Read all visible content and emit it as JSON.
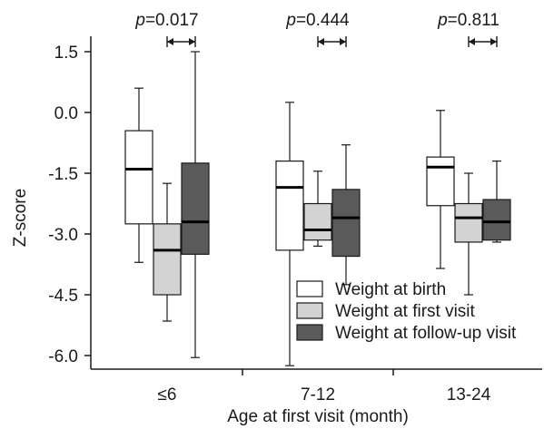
{
  "chart_data": {
    "type": "box",
    "xlabel": "Age at first visit (month)",
    "ylabel": "Z-score",
    "ylim": [
      -6.3,
      1.6
    ],
    "yticks": [
      {
        "value": 1.5,
        "label": "1.5"
      },
      {
        "value": 0.0,
        "label": "0.0"
      },
      {
        "value": -1.5,
        "label": "-1.5"
      },
      {
        "value": -3.0,
        "label": "-3.0"
      },
      {
        "value": -4.5,
        "label": "-4.5"
      },
      {
        "value": -6.0,
        "label": "-6.0"
      }
    ],
    "categories": [
      "≤6",
      "7-12",
      "13-24"
    ],
    "series": [
      {
        "name": "Weight at birth",
        "color": "#ffffff",
        "boxes": [
          {
            "min": -3.7,
            "q1": -2.75,
            "median": -1.4,
            "q3": -0.45,
            "max": 0.6
          },
          {
            "min": -6.25,
            "q1": -3.4,
            "median": -1.85,
            "q3": -1.2,
            "max": 0.25
          },
          {
            "min": -3.85,
            "q1": -2.3,
            "median": -1.35,
            "q3": -1.1,
            "max": 0.05
          }
        ]
      },
      {
        "name": "Weight at first visit",
        "color": "#d3d3d3",
        "boxes": [
          {
            "min": -5.15,
            "q1": -4.5,
            "median": -3.4,
            "q3": -2.75,
            "max": -1.75
          },
          {
            "min": -3.3,
            "q1": -3.15,
            "median": -2.9,
            "q3": -2.25,
            "max": -1.45
          },
          {
            "min": -4.5,
            "q1": -3.2,
            "median": -2.6,
            "q3": -2.25,
            "max": -1.5
          }
        ]
      },
      {
        "name": "Weight at follow-up visit",
        "color": "#5a5a5a",
        "boxes": [
          {
            "min": -6.05,
            "q1": -3.5,
            "median": -2.7,
            "q3": -1.25,
            "max": 1.5
          },
          {
            "min": -4.25,
            "q1": -3.55,
            "median": -2.6,
            "q3": -1.9,
            "max": -0.8
          },
          {
            "min": -3.2,
            "q1": -3.15,
            "median": -2.7,
            "q3": -2.15,
            "max": -1.2
          }
        ]
      }
    ],
    "annotations": [
      {
        "italic": "p",
        "text": "=0.017",
        "between": [
          1,
          2
        ]
      },
      {
        "italic": "p",
        "text": "=0.444",
        "between": [
          1,
          2
        ]
      },
      {
        "italic": "p",
        "text": "=0.811",
        "between": [
          1,
          2
        ]
      }
    ],
    "legend_position": "bottom-right",
    "grid": false
  }
}
